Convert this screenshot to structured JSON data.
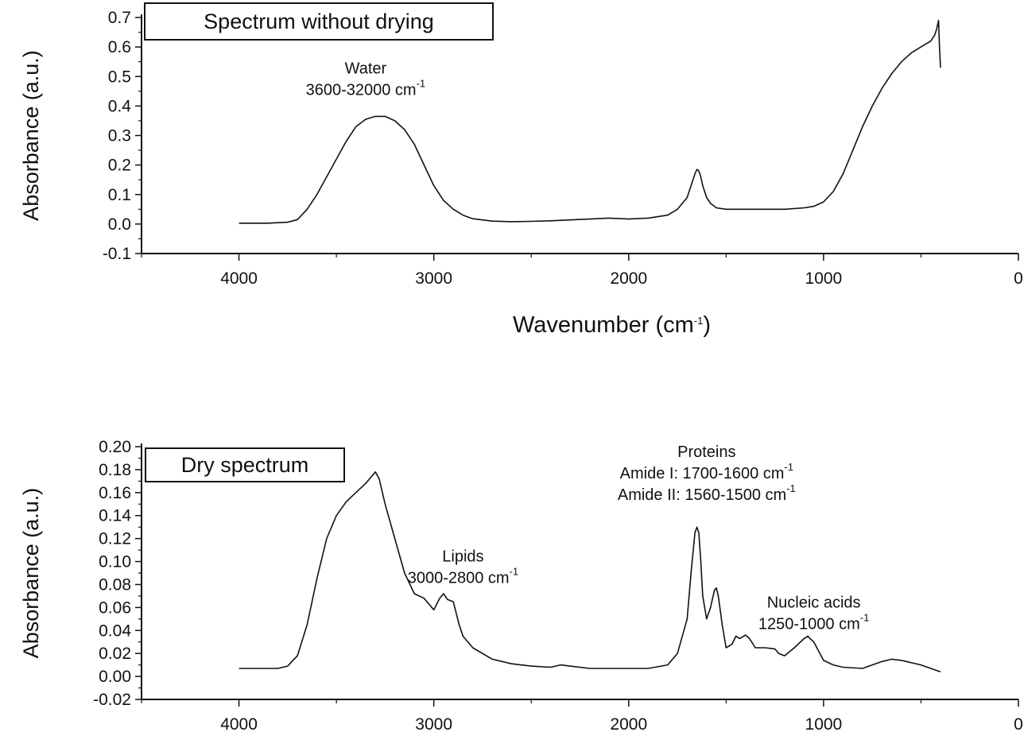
{
  "chart_data": [
    {
      "type": "line",
      "title": "Spectrum without drying",
      "xlabel": "Wavenumber (cm",
      "xlabel_sup": "-1",
      "xlabel_tail": ")",
      "ylabel": "Absorbance (a.u.)",
      "xlim": [
        4500,
        0
      ],
      "ylim": [
        -0.1,
        0.7
      ],
      "x_ticks": [
        "4000",
        "3000",
        "2000",
        "1000",
        "0"
      ],
      "y_ticks": [
        "0.7",
        "0.6",
        "0.5",
        "0.4",
        "0.3",
        "0.2",
        "0.1",
        "0.0",
        "-0.1"
      ],
      "grid": false,
      "annotations": [
        {
          "lines": [
            "Water",
            "3600-32000 cm"
          ],
          "sup": "-1",
          "x": 3350,
          "y": 0.51
        }
      ],
      "series": [
        {
          "x": [
            4000,
            3850,
            3750,
            3700,
            3650,
            3600,
            3550,
            3500,
            3450,
            3400,
            3350,
            3300,
            3250,
            3200,
            3150,
            3100,
            3050,
            3000,
            2950,
            2900,
            2850,
            2800,
            2700,
            2600,
            2500,
            2400,
            2300,
            2200,
            2100,
            2000,
            1900,
            1800,
            1750,
            1700,
            1680,
            1660,
            1650,
            1640,
            1630,
            1620,
            1600,
            1580,
            1550,
            1500,
            1400,
            1300,
            1200,
            1100,
            1050,
            1000,
            950,
            900,
            850,
            800,
            750,
            700,
            650,
            600,
            550,
            500,
            450,
            430,
            420,
            410,
            405,
            400
          ],
          "y": [
            0.003,
            0.003,
            0.006,
            0.015,
            0.05,
            0.1,
            0.16,
            0.22,
            0.28,
            0.33,
            0.355,
            0.365,
            0.365,
            0.35,
            0.32,
            0.27,
            0.2,
            0.13,
            0.08,
            0.05,
            0.03,
            0.018,
            0.01,
            0.008,
            0.009,
            0.011,
            0.014,
            0.017,
            0.02,
            0.017,
            0.02,
            0.03,
            0.05,
            0.09,
            0.13,
            0.17,
            0.185,
            0.18,
            0.16,
            0.13,
            0.09,
            0.07,
            0.055,
            0.05,
            0.05,
            0.05,
            0.05,
            0.055,
            0.06,
            0.075,
            0.11,
            0.17,
            0.25,
            0.33,
            0.4,
            0.46,
            0.51,
            0.55,
            0.58,
            0.6,
            0.62,
            0.64,
            0.66,
            0.69,
            0.6,
            0.53
          ]
        }
      ]
    },
    {
      "type": "line",
      "title": "Dry spectrum",
      "ylabel": "Absorbance (a.u.)",
      "xlim": [
        4500,
        0
      ],
      "ylim": [
        -0.02,
        0.2
      ],
      "x_ticks": [
        "4000",
        "3000",
        "2000",
        "1000",
        "0"
      ],
      "y_ticks": [
        "0.20",
        "0.18",
        "0.16",
        "0.14",
        "0.12",
        "0.10",
        "0.08",
        "0.06",
        "0.04",
        "0.02",
        "0.00",
        "-0.02"
      ],
      "grid": false,
      "annotations": [
        {
          "lines": [
            "Proteins",
            "Amide I: 1700-1600  cm",
            "Amide II: 1560-1500  cm"
          ],
          "sup": "-1",
          "x": 1600,
          "y": 0.191
        },
        {
          "lines": [
            "Lipids",
            "3000-2800 cm"
          ],
          "sup": "-1",
          "x": 2850,
          "y": 0.1
        },
        {
          "lines": [
            "Nucleic acids",
            "1250-1000  cm"
          ],
          "sup": "-1",
          "x": 1050,
          "y": 0.06
        }
      ],
      "series": [
        {
          "x": [
            4000,
            3900,
            3800,
            3750,
            3700,
            3650,
            3600,
            3550,
            3500,
            3450,
            3400,
            3350,
            3320,
            3300,
            3280,
            3250,
            3200,
            3150,
            3100,
            3050,
            3000,
            2970,
            2950,
            2930,
            2900,
            2870,
            2850,
            2800,
            2700,
            2600,
            2500,
            2400,
            2350,
            2300,
            2200,
            2100,
            2000,
            1900,
            1800,
            1750,
            1700,
            1680,
            1660,
            1650,
            1640,
            1630,
            1620,
            1600,
            1580,
            1560,
            1550,
            1540,
            1520,
            1500,
            1470,
            1450,
            1430,
            1400,
            1380,
            1350,
            1300,
            1250,
            1230,
            1200,
            1150,
            1100,
            1080,
            1070,
            1050,
            1000,
            950,
            900,
            800,
            700,
            650,
            600,
            500,
            450,
            400
          ],
          "y": [
            0.007,
            0.007,
            0.007,
            0.009,
            0.018,
            0.045,
            0.085,
            0.12,
            0.14,
            0.152,
            0.16,
            0.168,
            0.174,
            0.178,
            0.172,
            0.15,
            0.12,
            0.09,
            0.072,
            0.068,
            0.058,
            0.068,
            0.072,
            0.067,
            0.065,
            0.045,
            0.035,
            0.025,
            0.015,
            0.011,
            0.009,
            0.008,
            0.01,
            0.009,
            0.007,
            0.007,
            0.007,
            0.007,
            0.01,
            0.02,
            0.05,
            0.09,
            0.125,
            0.13,
            0.125,
            0.1,
            0.07,
            0.05,
            0.06,
            0.075,
            0.077,
            0.07,
            0.045,
            0.025,
            0.028,
            0.035,
            0.033,
            0.036,
            0.033,
            0.025,
            0.025,
            0.024,
            0.02,
            0.018,
            0.025,
            0.033,
            0.035,
            0.033,
            0.03,
            0.014,
            0.01,
            0.008,
            0.007,
            0.013,
            0.015,
            0.014,
            0.01,
            0.007,
            0.004
          ]
        }
      ]
    }
  ]
}
